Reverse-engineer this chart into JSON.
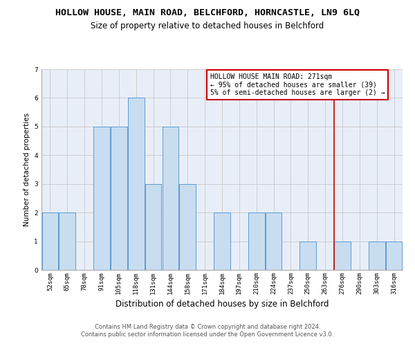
{
  "title": "HOLLOW HOUSE, MAIN ROAD, BELCHFORD, HORNCASTLE, LN9 6LQ",
  "subtitle": "Size of property relative to detached houses in Belchford",
  "xlabel": "Distribution of detached houses by size in Belchford",
  "ylabel": "Number of detached properties",
  "categories": [
    "52sqm",
    "65sqm",
    "78sqm",
    "91sqm",
    "105sqm",
    "118sqm",
    "131sqm",
    "144sqm",
    "158sqm",
    "171sqm",
    "184sqm",
    "197sqm",
    "210sqm",
    "224sqm",
    "237sqm",
    "250sqm",
    "263sqm",
    "276sqm",
    "290sqm",
    "303sqm",
    "316sqm"
  ],
  "values": [
    2,
    2,
    0,
    5,
    5,
    6,
    3,
    5,
    3,
    0,
    2,
    0,
    2,
    2,
    0,
    1,
    0,
    1,
    0,
    1,
    1
  ],
  "bar_color": "#c9ddf0",
  "bar_edgecolor": "#5b9bd5",
  "bar_linewidth": 0.7,
  "vline_color": "#cc0000",
  "vline_linewidth": 1.2,
  "vline_index": 16.5,
  "annotation_text": "HOLLOW HOUSE MAIN ROAD: 271sqm\n← 95% of detached houses are smaller (39)\n5% of semi-detached houses are larger (2) →",
  "annotation_box_edgecolor": "#cc0000",
  "annotation_box_facecolor": "#ffffff",
  "ylim": [
    0,
    7
  ],
  "yticks": [
    0,
    1,
    2,
    3,
    4,
    5,
    6,
    7
  ],
  "grid_color": "#c8c8c8",
  "background_color": "#e8eef8",
  "footer_text": "Contains HM Land Registry data © Crown copyright and database right 2024.\nContains public sector information licensed under the Open Government Licence v3.0.",
  "title_fontsize": 9.5,
  "subtitle_fontsize": 8.5,
  "xlabel_fontsize": 8.5,
  "ylabel_fontsize": 7.5,
  "tick_fontsize": 6.5,
  "annotation_fontsize": 7,
  "footer_fontsize": 6
}
